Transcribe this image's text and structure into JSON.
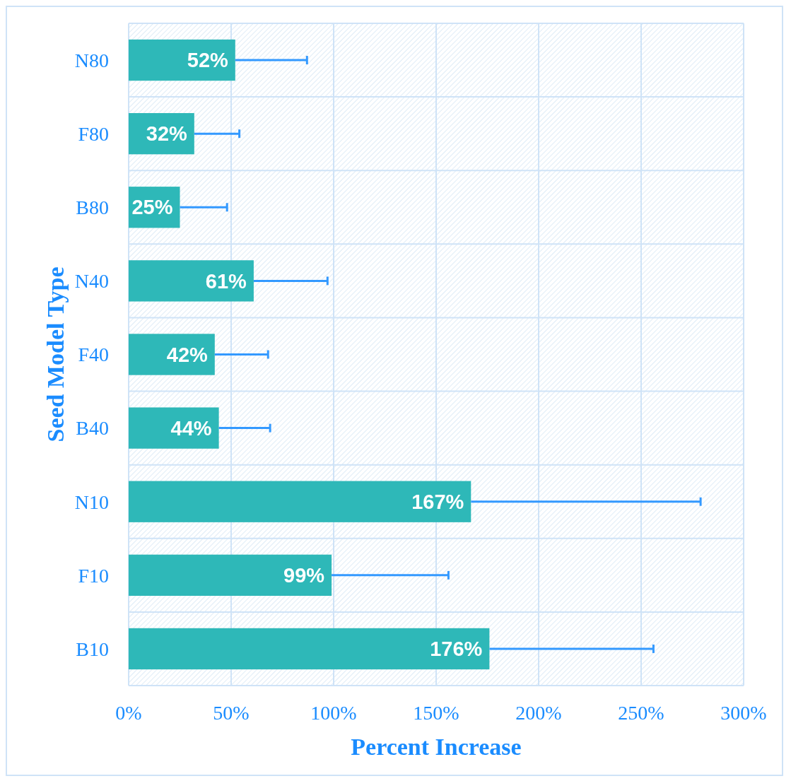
{
  "chart_data": {
    "type": "bar",
    "orientation": "horizontal",
    "xlabel": "Percent Increase",
    "ylabel": "Seed Model Type",
    "categories": [
      "N80",
      "F80",
      "B80",
      "N40",
      "F40",
      "B40",
      "N10",
      "F10",
      "B10"
    ],
    "values": [
      52,
      32,
      25,
      61,
      42,
      44,
      167,
      99,
      176
    ],
    "errors": [
      [
        52,
        87
      ],
      [
        32,
        54
      ],
      [
        25,
        48
      ],
      [
        61,
        97
      ],
      [
        42,
        68
      ],
      [
        44,
        69
      ],
      [
        167,
        279
      ],
      [
        99,
        156
      ],
      [
        176,
        256
      ]
    ],
    "color": "#2eb8b8",
    "data_labels": true,
    "value_labels": [
      "52%",
      "32%",
      "25%",
      "61%",
      "42%",
      "44%",
      "167%",
      "99%",
      "176%"
    ],
    "xlim": [
      0,
      300
    ],
    "xticks": [
      {
        "value": 0,
        "label": "0%"
      },
      {
        "value": 50,
        "label": "50%"
      },
      {
        "value": 100,
        "label": "100%"
      },
      {
        "value": 150,
        "label": "150%"
      },
      {
        "value": 200,
        "label": "200%"
      },
      {
        "value": 250,
        "label": "250%"
      },
      {
        "value": 300,
        "label": "300%"
      }
    ],
    "grid": true
  }
}
